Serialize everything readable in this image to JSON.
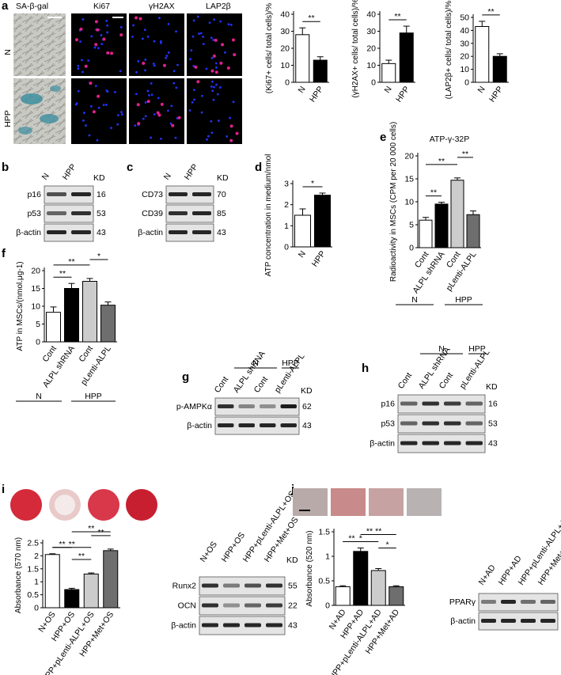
{
  "panels": {
    "a": {
      "label": "a",
      "image_headers": [
        "SA-β-gal",
        "Ki67",
        "γH2AX",
        "LAP2β"
      ],
      "row_labels": [
        "N",
        "HPP"
      ],
      "colors": {
        "background": "#000000",
        "nuclei": "#2233ff",
        "positive": "#e0208c"
      }
    },
    "b": {
      "label": "b",
      "lanes": [
        "N",
        "HPP"
      ],
      "kd_label": "KD",
      "bands": [
        {
          "name": "p16",
          "kd": "16"
        },
        {
          "name": "p53",
          "kd": "53"
        },
        {
          "name": "β-actin",
          "kd": "43"
        }
      ]
    },
    "c": {
      "label": "c",
      "lanes": [
        "N",
        "HPP"
      ],
      "kd_label": "KD",
      "bands": [
        {
          "name": "CD73",
          "kd": "70"
        },
        {
          "name": "CD39",
          "kd": "85"
        },
        {
          "name": "β-actin",
          "kd": "43"
        }
      ]
    },
    "d": {
      "label": "d"
    },
    "e": {
      "label": "e",
      "group_labels": [
        "N",
        "HPP"
      ]
    },
    "f": {
      "label": "f",
      "group_labels": [
        "N",
        "HPP"
      ]
    },
    "g": {
      "label": "g",
      "group_labels": [
        "N",
        "HPP"
      ],
      "kd_label": "KD",
      "lanes": [
        "Cont",
        "ALPL shRNA",
        "Cont",
        "pLenti-ALPL"
      ],
      "bands": [
        {
          "name": "p-AMPKα",
          "kd": "62"
        },
        {
          "name": "β-actin",
          "kd": "43"
        }
      ]
    },
    "h": {
      "label": "h",
      "group_labels": [
        "N",
        "HPP"
      ],
      "kd_label": "KD",
      "lanes": [
        "Cont",
        "ALPL shRNA",
        "Cont",
        "pLenti-ALPL"
      ],
      "bands": [
        {
          "name": "p16",
          "kd": "16"
        },
        {
          "name": "p53",
          "kd": "53"
        },
        {
          "name": "β-actin",
          "kd": "43"
        }
      ]
    },
    "i": {
      "label": "i",
      "kd_label": "KD",
      "blot_lanes": [
        "N+OS",
        "HPP+OS",
        "HPP+pLenti-ALPL+OS",
        "HPP+Met+OS"
      ],
      "bands": [
        {
          "name": "Runx2",
          "kd": "55"
        },
        {
          "name": "OCN",
          "kd": "22"
        },
        {
          "name": "β-actin",
          "kd": "43"
        }
      ]
    },
    "j": {
      "label": "j",
      "blot_lanes": [
        "N+AD",
        "HPP+AD",
        "HPP+pLenti-ALPL+AD",
        "HPP+Met+AD"
      ],
      "bands": [
        {
          "name": "PPARγ"
        },
        {
          "name": "β-actin"
        }
      ]
    }
  },
  "chart_data": [
    {
      "id": "a1",
      "type": "bar",
      "categories": [
        "N",
        "HPP"
      ],
      "values": [
        28,
        13
      ],
      "errors": [
        4,
        2
      ],
      "ylabel": "(Ki67+ cells/ total cells)/%",
      "yticks": [
        0,
        10,
        20,
        30,
        40
      ],
      "ylim": [
        0,
        40
      ],
      "significance": [
        {
          "from": 0,
          "to": 1,
          "label": "**"
        }
      ],
      "colors": [
        "#ffffff",
        "#000000"
      ]
    },
    {
      "id": "a2",
      "type": "bar",
      "categories": [
        "N",
        "HPP"
      ],
      "values": [
        11,
        29
      ],
      "errors": [
        2,
        4
      ],
      "ylabel": "(γH2AX+ cells/ total cells)/%",
      "yticks": [
        0,
        10,
        20,
        30,
        40
      ],
      "ylim": [
        0,
        40
      ],
      "significance": [
        {
          "from": 0,
          "to": 1,
          "label": "**"
        }
      ],
      "colors": [
        "#ffffff",
        "#000000"
      ]
    },
    {
      "id": "a3",
      "type": "bar",
      "categories": [
        "N",
        "HPP"
      ],
      "values": [
        43,
        20
      ],
      "errors": [
        4,
        2
      ],
      "ylabel": "(LAP2β+ cells/ total cells)/%",
      "yticks": [
        0,
        10,
        20,
        30,
        40,
        50
      ],
      "ylim": [
        0,
        50
      ],
      "significance": [
        {
          "from": 0,
          "to": 1,
          "label": "**"
        }
      ],
      "colors": [
        "#ffffff",
        "#000000"
      ]
    },
    {
      "id": "d",
      "type": "bar",
      "categories": [
        "N",
        "HPP"
      ],
      "values": [
        1.5,
        2.45
      ],
      "errors": [
        0.3,
        0.1
      ],
      "ylabel": "ATP concentration in medium/nmol",
      "yticks": [
        0,
        1,
        2,
        3
      ],
      "ylim": [
        0,
        3
      ],
      "significance": [
        {
          "from": 0,
          "to": 1,
          "label": "*"
        }
      ],
      "colors": [
        "#ffffff",
        "#000000"
      ]
    },
    {
      "id": "e",
      "type": "bar",
      "title": "ATP-γ-32P",
      "categories": [
        "Cont",
        "ALPL shRNA",
        "Cont",
        "pLenti-ALPL"
      ],
      "values": [
        6,
        9.5,
        14.7,
        7.2
      ],
      "errors": [
        0.6,
        0.4,
        0.5,
        0.8
      ],
      "ylabel": "Radioactivity in MSCs (CPM per 20 000 cells)",
      "yticks": [
        0,
        5,
        10,
        15,
        20
      ],
      "ylim": [
        0,
        20
      ],
      "significance": [
        {
          "from": 0,
          "to": 1,
          "label": "**"
        },
        {
          "from": 0,
          "to": 2,
          "label": "**"
        },
        {
          "from": 2,
          "to": 3,
          "label": "**"
        }
      ],
      "colors": [
        "#ffffff",
        "#000000",
        "#cccccc",
        "#6e6e6e"
      ]
    },
    {
      "id": "f",
      "type": "bar",
      "categories": [
        "Cont",
        "ALPL shRNA",
        "Cont",
        "pLenti-ALPL"
      ],
      "values": [
        8.3,
        15,
        17,
        10.3
      ],
      "errors": [
        1.5,
        1.4,
        0.8,
        0.9
      ],
      "ylabel": "ATP in MSCs/(nmol.μg-1)",
      "yticks": [
        0,
        5,
        10,
        15,
        20
      ],
      "ylim": [
        0,
        20
      ],
      "significance": [
        {
          "from": 0,
          "to": 1,
          "label": "**"
        },
        {
          "from": 0,
          "to": 2,
          "label": "**"
        },
        {
          "from": 2,
          "to": 3,
          "label": "*"
        }
      ],
      "colors": [
        "#ffffff",
        "#000000",
        "#cccccc",
        "#6e6e6e"
      ]
    },
    {
      "id": "i",
      "type": "bar",
      "categories": [
        "N+OS",
        "HPP+OS",
        "HPP+pLenti-ALPL+OS",
        "HPP+Met+OS"
      ],
      "values": [
        2.05,
        0.7,
        1.3,
        2.2
      ],
      "errors": [
        0.03,
        0.05,
        0.04,
        0.06
      ],
      "ylabel": "Absorbance (570 nm)",
      "yticks": [
        0,
        0.5,
        1.0,
        1.5,
        2.0,
        2.5
      ],
      "ylim": [
        0,
        2.5
      ],
      "significance": [
        {
          "from": 0,
          "to": 1,
          "label": "**"
        },
        {
          "from": 1,
          "to": 2,
          "label": "**"
        },
        {
          "from": 1,
          "to": 3,
          "label": "**"
        },
        {
          "from": 0,
          "to": 2,
          "label": "**"
        },
        {
          "from": 2,
          "to": 3,
          "label": "**"
        }
      ],
      "colors": [
        "#ffffff",
        "#000000",
        "#cccccc",
        "#6e6e6e"
      ]
    },
    {
      "id": "j",
      "type": "bar",
      "categories": [
        "N+AD",
        "HPP+AD",
        "HPP+pLenti-ALPL+AD",
        "HPP+Met+AD"
      ],
      "values": [
        0.38,
        1.1,
        0.71,
        0.38
      ],
      "errors": [
        0.02,
        0.07,
        0.04,
        0.02
      ],
      "ylabel": "Absorbance (520 nm)",
      "yticks": [
        0,
        0.5,
        1.0,
        1.5
      ],
      "ylim": [
        0,
        1.5
      ],
      "significance": [
        {
          "from": 0,
          "to": 1,
          "label": "**"
        },
        {
          "from": 1,
          "to": 2,
          "label": "**"
        },
        {
          "from": 2,
          "to": 3,
          "label": "*"
        },
        {
          "from": 0,
          "to": 2,
          "label": "*"
        },
        {
          "from": 1,
          "to": 3,
          "label": "**"
        }
      ],
      "colors": [
        "#ffffff",
        "#000000",
        "#cccccc",
        "#6e6e6e"
      ]
    }
  ]
}
